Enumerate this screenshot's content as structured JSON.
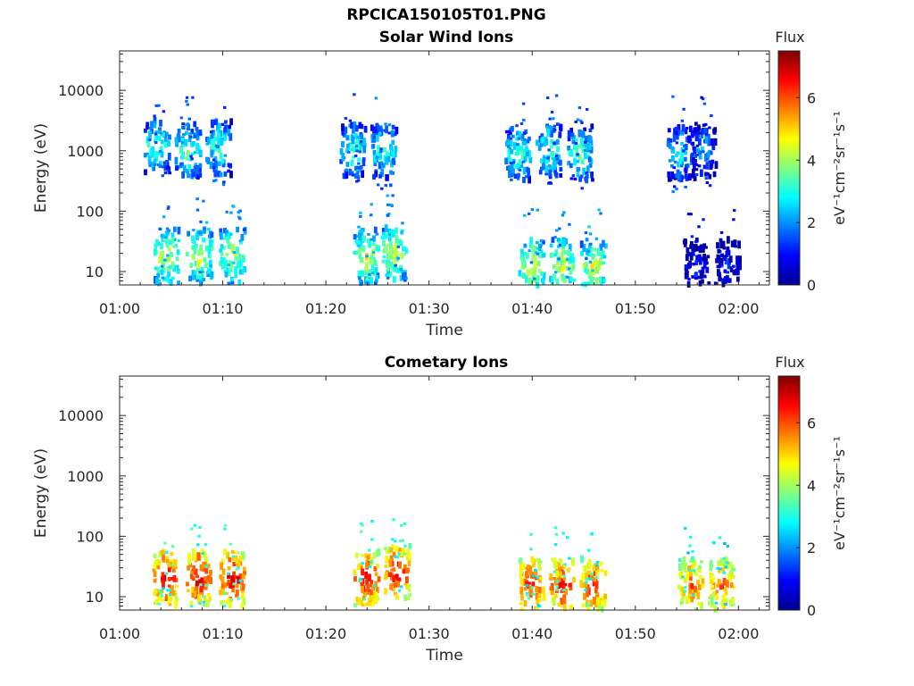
{
  "figure": {
    "title": "RPCICA150105T01.PNG"
  },
  "colors": {
    "colormap": [
      "#00008f",
      "#0000ff",
      "#0080ff",
      "#00ffff",
      "#80ff80",
      "#ffff00",
      "#ff8000",
      "#ff0000",
      "#800000"
    ],
    "axis": "#262626",
    "background": "#ffffff"
  },
  "chart_data": [
    {
      "type": "heatmap",
      "title": "Solar Wind Ions",
      "xlabel": "Time",
      "ylabel": "Energy (eV)",
      "xticks": [
        "01:00",
        "01:10",
        "01:20",
        "01:30",
        "01:40",
        "01:50",
        "02:00"
      ],
      "xlim_minutes": [
        0,
        63
      ],
      "yscale": "log",
      "ylim": [
        6,
        45000
      ],
      "yticks": [
        "10",
        "100",
        "1000",
        "10000"
      ],
      "colorbar": {
        "title": "Flux",
        "label": "eV⁻¹cm⁻²sr⁻¹s⁻¹",
        "range": [
          0,
          7.5
        ],
        "ticks": [
          "0",
          "2",
          "4",
          "6"
        ]
      },
      "bursts": [
        {
          "t": 3.5,
          "e": 1200,
          "v": 3.5
        },
        {
          "t": 6.5,
          "e": 1000,
          "v": 3.5
        },
        {
          "t": 9.5,
          "e": 1100,
          "v": 3.5
        },
        {
          "t": 4.4,
          "e": 18,
          "v": 4.5
        },
        {
          "t": 7.6,
          "e": 18,
          "v": 4.5
        },
        {
          "t": 10.8,
          "e": 18,
          "v": 4.5
        },
        {
          "t": 22.5,
          "e": 1000,
          "v": 3.5
        },
        {
          "t": 25.5,
          "e": 1000,
          "v": 3.5
        },
        {
          "t": 23.8,
          "e": 18,
          "v": 4.5
        },
        {
          "t": 26.5,
          "e": 20,
          "v": 4.5
        },
        {
          "t": 38.5,
          "e": 900,
          "v": 3.5
        },
        {
          "t": 41.5,
          "e": 1000,
          "v": 3.5
        },
        {
          "t": 44.5,
          "e": 900,
          "v": 3.5
        },
        {
          "t": 39.8,
          "e": 12,
          "v": 4.5
        },
        {
          "t": 42.8,
          "e": 12,
          "v": 4.5
        },
        {
          "t": 45.8,
          "e": 12,
          "v": 4.5
        },
        {
          "t": 54.2,
          "e": 900,
          "v": 3.0
        },
        {
          "t": 56.5,
          "e": 1000,
          "v": 2.5
        },
        {
          "t": 55.8,
          "e": 12,
          "v": 1.5
        },
        {
          "t": 58.8,
          "e": 12,
          "v": 1.5
        }
      ]
    },
    {
      "type": "heatmap",
      "title": "Cometary Ions",
      "xlabel": "Time",
      "ylabel": "Energy (eV)",
      "xticks": [
        "01:00",
        "01:10",
        "01:20",
        "01:30",
        "01:40",
        "01:50",
        "02:00"
      ],
      "xlim_minutes": [
        0,
        63
      ],
      "yscale": "log",
      "ylim": [
        6,
        45000
      ],
      "yticks": [
        "10",
        "100",
        "1000",
        "10000"
      ],
      "colorbar": {
        "title": "Flux",
        "label": "eV⁻¹cm⁻²sr⁻¹s⁻¹",
        "range": [
          0,
          7.5
        ],
        "ticks": [
          "0",
          "2",
          "4",
          "6"
        ]
      },
      "bursts": [
        {
          "t": 4.3,
          "e": 20,
          "v": 6.8
        },
        {
          "t": 7.5,
          "e": 20,
          "v": 6.8
        },
        {
          "t": 10.8,
          "e": 20,
          "v": 6.8
        },
        {
          "t": 23.8,
          "e": 20,
          "v": 6.8
        },
        {
          "t": 26.8,
          "e": 25,
          "v": 6.8
        },
        {
          "t": 39.8,
          "e": 15,
          "v": 6.5
        },
        {
          "t": 42.8,
          "e": 15,
          "v": 6.5
        },
        {
          "t": 45.8,
          "e": 15,
          "v": 6.5
        },
        {
          "t": 55.2,
          "e": 15,
          "v": 6.0
        },
        {
          "t": 58.2,
          "e": 15,
          "v": 6.0
        }
      ]
    }
  ]
}
